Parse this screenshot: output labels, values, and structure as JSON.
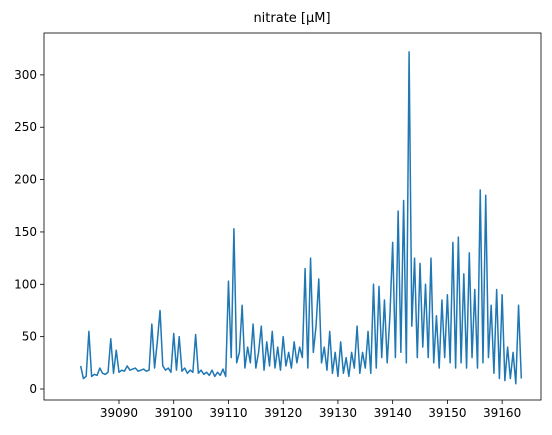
{
  "chart_data": {
    "type": "line",
    "title": "nitrate [μM]",
    "x": [
      39083,
      39083.5,
      39084,
      39084.5,
      39085,
      39085.5,
      39086,
      39086.5,
      39087,
      39087.5,
      39088,
      39088.5,
      39089,
      39089.5,
      39090,
      39090.5,
      39091,
      39091.5,
      39092,
      39092.5,
      39093,
      39093.5,
      39094,
      39094.5,
      39095,
      39095.5,
      39096,
      39096.5,
      39097,
      39097.5,
      39098,
      39098.5,
      39099,
      39099.5,
      39100,
      39100.5,
      39101,
      39101.5,
      39102,
      39102.5,
      39103,
      39103.5,
      39104,
      39104.5,
      39105,
      39105.5,
      39106,
      39106.5,
      39107,
      39107.5,
      39108,
      39108.5,
      39109,
      39109.5,
      39110,
      39110.5,
      39111,
      39111.5,
      39112,
      39112.5,
      39113,
      39113.5,
      39114,
      39114.5,
      39115,
      39115.5,
      39116,
      39116.5,
      39117,
      39117.5,
      39118,
      39118.5,
      39119,
      39119.5,
      39120,
      39120.5,
      39121,
      39121.5,
      39122,
      39122.5,
      39123,
      39123.5,
      39124,
      39124.5,
      39125,
      39125.5,
      39126,
      39126.5,
      39127,
      39127.5,
      39128,
      39128.5,
      39129,
      39129.5,
      39130,
      39130.5,
      39131,
      39131.5,
      39132,
      39132.5,
      39133,
      39133.5,
      39134,
      39134.5,
      39135,
      39135.5,
      39136,
      39136.5,
      39137,
      39137.5,
      39138,
      39138.5,
      39139,
      39139.5,
      39140,
      39140.5,
      39141,
      39141.5,
      39142,
      39142.5,
      39143,
      39143.5,
      39144,
      39144.5,
      39145,
      39145.5,
      39146,
      39146.5,
      39147,
      39147.5,
      39148,
      39148.5,
      39149,
      39149.5,
      39150,
      39150.5,
      39151,
      39151.5,
      39152,
      39152.5,
      39153,
      39153.5,
      39154,
      39154.5,
      39155,
      39155.5,
      39156,
      39156.5,
      39157,
      39157.5,
      39158,
      39158.5,
      39159,
      39159.5,
      39160,
      39160.5,
      39161,
      39161.5,
      39162,
      39162.5,
      39163,
      39163.5
    ],
    "series": [
      {
        "name": "nitrate",
        "color": "#1f77b4",
        "values": [
          22,
          10,
          12,
          55,
          12,
          14,
          13,
          20,
          15,
          14,
          16,
          48,
          15,
          37,
          16,
          18,
          17,
          22,
          18,
          19,
          20,
          17,
          18,
          19,
          17,
          18,
          62,
          20,
          45,
          75,
          22,
          18,
          20,
          16,
          53,
          18,
          50,
          17,
          20,
          15,
          18,
          16,
          52,
          15,
          18,
          14,
          16,
          13,
          18,
          12,
          16,
          13,
          19,
          12,
          103,
          30,
          153,
          25,
          35,
          80,
          20,
          40,
          25,
          62,
          20,
          35,
          60,
          18,
          45,
          22,
          55,
          20,
          40,
          18,
          50,
          22,
          35,
          20,
          45,
          25,
          40,
          30,
          115,
          20,
          125,
          35,
          60,
          105,
          25,
          40,
          18,
          55,
          15,
          35,
          12,
          45,
          15,
          30,
          12,
          35,
          20,
          60,
          15,
          35,
          20,
          55,
          15,
          100,
          20,
          98,
          30,
          85,
          25,
          70,
          140,
          30,
          170,
          35,
          180,
          25,
          322,
          60,
          125,
          30,
          120,
          40,
          100,
          30,
          125,
          25,
          70,
          20,
          85,
          30,
          90,
          25,
          140,
          20,
          145,
          25,
          110,
          20,
          130,
          30,
          95,
          20,
          190,
          25,
          185,
          30,
          80,
          15,
          95,
          10,
          90,
          8,
          40,
          10,
          35,
          5,
          80,
          10
        ]
      }
    ],
    "xlim": [
      39076.3,
      39167.1
    ],
    "ylim": [
      -10.5,
      340
    ],
    "xticks": [
      39090,
      39100,
      39110,
      39120,
      39130,
      39140,
      39150,
      39160
    ],
    "yticks": [
      0,
      50,
      100,
      150,
      200,
      250,
      300
    ]
  }
}
